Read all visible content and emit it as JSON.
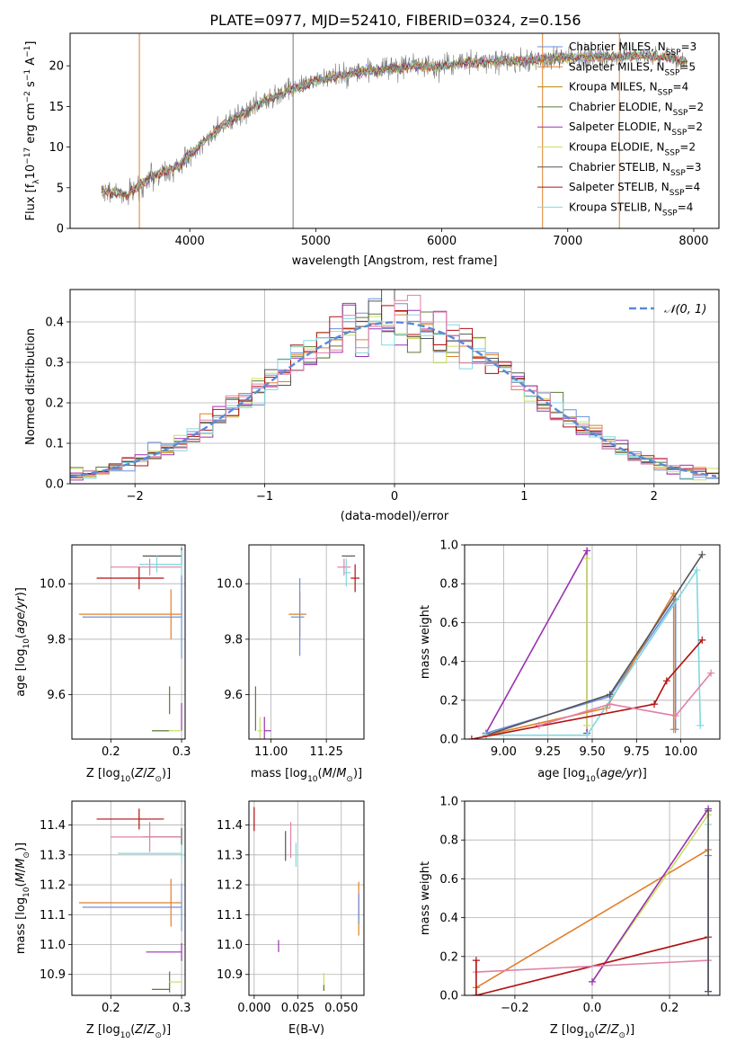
{
  "figure": {
    "title": "PLATE=0977, MJD=52410, FIBERID=0324, z=0.156"
  },
  "colors": {
    "Chabrier MILES": "#6b8fe0",
    "Salpeter MILES": "#e0802a",
    "Kroupa MILES": "#b8860b",
    "Chabrier ELODIE": "#5a7a3a",
    "Salpeter ELODIE": "#9b30b0",
    "Kroupa ELODIE": "#c8e060",
    "Chabrier STELIB": "#555555",
    "Salpeter STELIB": "#b01010",
    "Kroupa STELIB": "#80d8e0",
    "pink": "#e080a8",
    "spectrum": "#777777"
  },
  "chart_data": [
    {
      "id": "spectrum",
      "type": "line",
      "xlabel": "wavelength [Angstrom, rest frame]",
      "ylabel": "Flux [f",
      "ylabel_parts": [
        "Flux [f",
        "λ",
        "10",
        "−17",
        " erg cm",
        "−2",
        " s",
        "−1",
        " A",
        "−1",
        "]"
      ],
      "xlim": [
        3050,
        8200
      ],
      "ylim": [
        0,
        24
      ],
      "xticks": [
        "4000",
        "5000",
        "6000",
        "7000",
        "8000"
      ],
      "yticks": [
        "0",
        "5",
        "10",
        "15",
        "20"
      ],
      "grid": false,
      "legend_position": "right",
      "legend": [
        {
          "label": "Chabrier MILES, N",
          "sub": "SSP",
          "tail": "=3",
          "color": "#6b8fe0"
        },
        {
          "label": "Salpeter MILES, N",
          "sub": "SSP",
          "tail": "=5",
          "color": "#e0802a"
        },
        {
          "label": "Kroupa MILES, N",
          "sub": "SSP",
          "tail": "=4",
          "color": "#b8860b"
        },
        {
          "label": "Chabrier ELODIE, N",
          "sub": "SSP",
          "tail": "=2",
          "color": "#5a7a3a"
        },
        {
          "label": "Salpeter ELODIE, N",
          "sub": "SSP",
          "tail": "=2",
          "color": "#9b30b0"
        },
        {
          "label": "Kroupa ELODIE, N",
          "sub": "SSP",
          "tail": "=2",
          "color": "#c8e060"
        },
        {
          "label": "Chabrier STELIB, N",
          "sub": "SSP",
          "tail": "=3",
          "color": "#555555"
        },
        {
          "label": "Salpeter STELIB, N",
          "sub": "SSP",
          "tail": "=4",
          "color": "#b01010"
        },
        {
          "label": "Kroupa STELIB, N",
          "sub": "SSP",
          "tail": "=4",
          "color": "#80d8e0"
        }
      ],
      "continuum": [
        [
          3300,
          4.6
        ],
        [
          3500,
          4.2
        ],
        [
          3600,
          5.3
        ],
        [
          3750,
          6.8
        ],
        [
          3900,
          7.5
        ],
        [
          4000,
          9.0
        ],
        [
          4200,
          12.0
        ],
        [
          4400,
          14.0
        ],
        [
          4600,
          15.8
        ],
        [
          4800,
          17.0
        ],
        [
          5000,
          18.2
        ],
        [
          5200,
          18.8
        ],
        [
          5400,
          19.3
        ],
        [
          5600,
          19.6
        ],
        [
          5800,
          20.0
        ],
        [
          6000,
          19.9
        ],
        [
          6200,
          20.4
        ],
        [
          6400,
          20.5
        ],
        [
          6600,
          20.6
        ],
        [
          6800,
          20.8
        ],
        [
          7000,
          21.0
        ],
        [
          7200,
          21.1
        ],
        [
          7400,
          21.1
        ],
        [
          7600,
          21.2
        ],
        [
          7800,
          21.0
        ],
        [
          7950,
          20.5
        ]
      ],
      "vertical_lines": [
        {
          "x": 4820,
          "color": "#777777"
        },
        {
          "x": 6800,
          "color": "#e0802a"
        },
        {
          "x": 7410,
          "color": "#e0802a"
        },
        {
          "x": 3600,
          "color": "#e0802a"
        }
      ]
    },
    {
      "id": "histogram",
      "type": "step",
      "xlabel": "(data-model)/error",
      "ylabel": "Normed distribution",
      "xlim": [
        -2.5,
        2.5
      ],
      "ylim": [
        0,
        0.48
      ],
      "xticks": [
        "−2",
        "−1",
        "0",
        "1",
        "2"
      ],
      "yticks": [
        "0.0",
        "0.1",
        "0.2",
        "0.3",
        "0.4"
      ],
      "grid": true,
      "legend": [
        {
          "label": "𝒩(0, 1)",
          "style": "dashed",
          "color": "#5a8ad8"
        }
      ],
      "bin_width": 0.1,
      "series_colors": [
        "#6b8fe0",
        "#e0802a",
        "#5a7a3a",
        "#9b30b0",
        "#c8e060",
        "#555555",
        "#b01010",
        "#80d8e0",
        "#e080a8"
      ]
    },
    {
      "id": "age_vs_Z",
      "type": "errorbar",
      "xlabel": "Z [log",
      "xlabel_full": "Z [log10(Z/Z⊙)]",
      "ylabel": "age  [log10(age/yr)]",
      "xlim": [
        0.145,
        0.305
      ],
      "ylim": [
        9.44,
        10.14
      ],
      "xticks": [
        "0.2",
        "0.3"
      ],
      "yticks": [
        "9.6",
        "9.8",
        "10.0"
      ],
      "grid": true,
      "points": [
        {
          "x": 0.3,
          "y": 10.1,
          "xerr": [
            0.055,
            0.0
          ],
          "yerr": 0.03,
          "color": "#555555"
        },
        {
          "x": 0.255,
          "y": 10.06,
          "xerr": [
            0.055,
            0.045
          ],
          "yerr": 0.03,
          "color": "#e080a8"
        },
        {
          "x": 0.265,
          "y": 10.07,
          "xerr": [
            0.025,
            0.035
          ],
          "yerr": 0.03,
          "color": "#80d8e0"
        },
        {
          "x": 0.24,
          "y": 10.02,
          "xerr": [
            0.06,
            0.035
          ],
          "yerr": 0.04,
          "color": "#b01010"
        },
        {
          "x": 0.3,
          "y": 10.0,
          "xerr": [
            0.0,
            0.0
          ],
          "yerr": 0.12,
          "color": "#80d8e0"
        },
        {
          "x": 0.285,
          "y": 9.89,
          "xerr": [
            0.13,
            0.015
          ],
          "yerr": 0.09,
          "color": "#e0802a"
        },
        {
          "x": 0.3,
          "y": 9.88,
          "xerr": [
            0.14,
            0.0
          ],
          "yerr": 0.15,
          "color": "#6b8fe0"
        },
        {
          "x": 0.283,
          "y": 9.58,
          "xerr": [
            0.0,
            0.0
          ],
          "yerr": 0.05,
          "color": "#5a7a3a"
        },
        {
          "x": 0.283,
          "y": 9.47,
          "xerr": [
            0.025,
            0.0
          ],
          "yerr": 0.0,
          "color": "#5a7a3a"
        },
        {
          "x": 0.3,
          "y": 9.52,
          "xerr": [
            0.0,
            0.0
          ],
          "yerr": 0.05,
          "color": "#9b30b0"
        },
        {
          "x": 0.29,
          "y": 9.47,
          "xerr": [
            0.008,
            0.01
          ],
          "yerr": 0.0,
          "color": "#c8e060"
        }
      ]
    },
    {
      "id": "age_vs_mass",
      "type": "errorbar",
      "xlabel": "mass [log10(M/M⊙)]",
      "ylabel": "",
      "xlim": [
        10.9,
        11.42
      ],
      "ylim": [
        9.44,
        10.14
      ],
      "xticks": [
        "11.00",
        "11.25"
      ],
      "yticks": [
        "9.6",
        "9.8",
        "10.0"
      ],
      "grid": true,
      "points": [
        {
          "x": 11.35,
          "y": 10.1,
          "xerr": [
            0.03,
            0.03
          ],
          "yerr": 0.0,
          "color": "#555555"
        },
        {
          "x": 11.33,
          "y": 10.06,
          "xerr": [
            0.03,
            0.03
          ],
          "yerr": 0.03,
          "color": "#e080a8"
        },
        {
          "x": 11.34,
          "y": 10.04,
          "xerr": [
            0.01,
            0.02
          ],
          "yerr": 0.05,
          "color": "#80d8e0"
        },
        {
          "x": 11.38,
          "y": 10.02,
          "xerr": [
            0.02,
            0.02
          ],
          "yerr": 0.05,
          "color": "#b01010"
        },
        {
          "x": 11.13,
          "y": 9.89,
          "xerr": [
            0.05,
            0.03
          ],
          "yerr": 0.08,
          "color": "#e0802a"
        },
        {
          "x": 11.13,
          "y": 9.88,
          "xerr": [
            0.04,
            0.02
          ],
          "yerr": 0.14,
          "color": "#6b8fe0"
        },
        {
          "x": 10.93,
          "y": 9.55,
          "xerr": [
            0.0,
            0.0
          ],
          "yerr": 0.08,
          "color": "#5a7a3a"
        },
        {
          "x": 10.97,
          "y": 9.47,
          "xerr": [
            0.0,
            0.03
          ],
          "yerr": 0.05,
          "color": "#9b30b0"
        },
        {
          "x": 10.95,
          "y": 9.47,
          "xerr": [
            0.01,
            0.01
          ],
          "yerr": 0.05,
          "color": "#c8e060"
        }
      ]
    },
    {
      "id": "weight_vs_age",
      "type": "line",
      "xlabel": "age  [log10(age/yr)]",
      "ylabel": "mass weight",
      "xlim": [
        8.78,
        10.22
      ],
      "ylim": [
        0.0,
        1.0
      ],
      "xticks": [
        "9.00",
        "9.25",
        "9.50",
        "9.75",
        "10.00"
      ],
      "yticks": [
        "0.0",
        "0.2",
        "0.4",
        "0.6",
        "0.8",
        "1.0"
      ],
      "grid": true,
      "series": [
        {
          "color": "#9b30b0",
          "x": [
            8.9,
            9.47,
            9.47
          ],
          "y": [
            0.03,
            0.97,
            0.03
          ]
        },
        {
          "color": "#c8e060",
          "x": [
            9.47,
            9.47
          ],
          "y": [
            0.93,
            0.07
          ]
        },
        {
          "color": "#6b8fe0",
          "x": [
            8.9,
            9.6,
            9.97,
            9.97
          ],
          "y": [
            0.03,
            0.22,
            0.72,
            0.05
          ]
        },
        {
          "color": "#e0802a",
          "x": [
            8.9,
            9.58,
            9.96,
            9.96
          ],
          "y": [
            0.02,
            0.16,
            0.75,
            0.05
          ]
        },
        {
          "color": "#555555",
          "x": [
            8.9,
            9.6,
            10.12
          ],
          "y": [
            0.02,
            0.23,
            0.95
          ]
        },
        {
          "color": "#80d8e0",
          "x": [
            8.9,
            9.47,
            10.09,
            10.11
          ],
          "y": [
            0.02,
            0.02,
            0.87,
            0.07
          ]
        },
        {
          "color": "#b01010",
          "x": [
            8.82,
            9.85,
            9.92,
            10.12
          ],
          "y": [
            0.0,
            0.18,
            0.3,
            0.51
          ]
        },
        {
          "color": "#e080a8",
          "x": [
            9.2,
            9.6,
            9.97,
            10.17
          ],
          "y": [
            0.07,
            0.18,
            0.12,
            0.34
          ]
        }
      ]
    },
    {
      "id": "mass_vs_Z",
      "type": "errorbar",
      "xlabel": "Z [log10(Z/Z⊙)]",
      "ylabel": "mass [log10(M/M⊙)]",
      "xlim": [
        0.145,
        0.305
      ],
      "ylim": [
        10.83,
        11.48
      ],
      "xticks": [
        "0.2",
        "0.3"
      ],
      "yticks": [
        "10.9",
        "11.0",
        "11.1",
        "11.2",
        "11.3",
        "11.4"
      ],
      "grid": true,
      "points": [
        {
          "x": 0.24,
          "y": 11.42,
          "xerr": [
            0.06,
            0.035
          ],
          "yerr": 0.035,
          "color": "#b01010"
        },
        {
          "x": 0.3,
          "y": 11.36,
          "xerr": [
            0.055,
            0.0
          ],
          "yerr": 0.03,
          "color": "#555555"
        },
        {
          "x": 0.255,
          "y": 11.36,
          "xerr": [
            0.055,
            0.045
          ],
          "yerr": 0.05,
          "color": "#e080a8"
        },
        {
          "x": 0.3,
          "y": 11.305,
          "xerr": [
            0.09,
            0.0
          ],
          "yerr": 0.03,
          "color": "#80d8e0"
        },
        {
          "x": 0.285,
          "y": 11.14,
          "xerr": [
            0.13,
            0.015
          ],
          "yerr": 0.08,
          "color": "#e0802a"
        },
        {
          "x": 0.3,
          "y": 11.125,
          "xerr": [
            0.14,
            0.0
          ],
          "yerr": 0.08,
          "color": "#6b8fe0"
        },
        {
          "x": 0.3,
          "y": 10.975,
          "xerr": [
            0.05,
            0.0
          ],
          "yerr": 0.03,
          "color": "#9b30b0"
        },
        {
          "x": 0.283,
          "y": 10.875,
          "xerr": [
            0.0,
            0.0
          ],
          "yerr": 0.035,
          "color": "#5a7a3a"
        },
        {
          "x": 0.29,
          "y": 10.875,
          "xerr": [
            0.008,
            0.01
          ],
          "yerr": 0.0,
          "color": "#c8e060"
        },
        {
          "x": 0.283,
          "y": 10.85,
          "xerr": [
            0.025,
            0.0
          ],
          "yerr": 0.0,
          "color": "#5a7a3a"
        }
      ]
    },
    {
      "id": "mass_vs_EBV",
      "type": "errorbar",
      "xlabel": "E(B-V)",
      "ylabel": "",
      "xlim": [
        -0.003,
        0.063
      ],
      "ylim": [
        10.83,
        11.48
      ],
      "xticks": [
        "0.000",
        "0.025",
        "0.050"
      ],
      "yticks": [
        "10.9",
        "11.0",
        "11.1",
        "11.2",
        "11.3",
        "11.4"
      ],
      "grid": true,
      "points": [
        {
          "x": 0.0,
          "y": 11.42,
          "xerr": [
            0,
            0
          ],
          "yerr": 0.04,
          "color": "#b01010"
        },
        {
          "x": 0.018,
          "y": 11.33,
          "xerr": [
            0,
            0
          ],
          "yerr": 0.05,
          "color": "#555555"
        },
        {
          "x": 0.021,
          "y": 11.35,
          "xerr": [
            0,
            0
          ],
          "yerr": 0.06,
          "color": "#e080a8"
        },
        {
          "x": 0.024,
          "y": 11.3,
          "xerr": [
            0,
            0
          ],
          "yerr": 0.04,
          "color": "#80d8e0"
        },
        {
          "x": 0.06,
          "y": 11.12,
          "xerr": [
            0,
            0
          ],
          "yerr": 0.09,
          "color": "#e0802a"
        },
        {
          "x": 0.06,
          "y": 11.12,
          "xerr": [
            0,
            0
          ],
          "yerr": 0.05,
          "color": "#6b8fe0"
        },
        {
          "x": 0.014,
          "y": 10.995,
          "xerr": [
            0,
            0
          ],
          "yerr": 0.02,
          "color": "#9b30b0"
        },
        {
          "x": 0.04,
          "y": 10.875,
          "xerr": [
            0,
            0
          ],
          "yerr": 0.03,
          "color": "#c8e060"
        },
        {
          "x": 0.04,
          "y": 10.855,
          "xerr": [
            0,
            0
          ],
          "yerr": 0.01,
          "color": "#5a7a3a"
        }
      ]
    },
    {
      "id": "weight_vs_Z",
      "type": "line",
      "xlabel": "Z [log10(Z/Z⊙)]",
      "ylabel": "mass weight",
      "xlim": [
        -0.33,
        0.33
      ],
      "ylim": [
        0.0,
        1.0
      ],
      "xticks": [
        "−0.2",
        "0.0",
        "0.2"
      ],
      "yticks": [
        "0.0",
        "0.2",
        "0.4",
        "0.6",
        "0.8",
        "1.0"
      ],
      "grid": true,
      "series": [
        {
          "color": "#e0802a",
          "x": [
            -0.3,
            0.3
          ],
          "y": [
            0.04,
            0.75
          ]
        },
        {
          "color": "#c8e060",
          "x": [
            0.0,
            0.3
          ],
          "y": [
            0.07,
            0.93
          ]
        },
        {
          "color": "#9b30b0",
          "x": [
            0.0,
            0.3
          ],
          "y": [
            0.07,
            0.96
          ]
        },
        {
          "color": "#b01010",
          "x": [
            -0.3,
            0.3
          ],
          "y": [
            0.0,
            0.3
          ]
        },
        {
          "color": "#e080a8",
          "x": [
            -0.3,
            0.3
          ],
          "y": [
            0.12,
            0.18
          ]
        },
        {
          "color": "#b01010",
          "x": [
            -0.3,
            -0.3
          ],
          "y": [
            0.0,
            0.18
          ]
        },
        {
          "color": "#80d8e0",
          "x": [
            0.3,
            0.3
          ],
          "y": [
            0.02,
            0.88
          ]
        },
        {
          "color": "#6b8fe0",
          "x": [
            0.3,
            0.3
          ],
          "y": [
            0.02,
            0.72
          ]
        },
        {
          "color": "#555555",
          "x": [
            0.3,
            0.3
          ],
          "y": [
            0.02,
            0.95
          ]
        }
      ]
    }
  ]
}
